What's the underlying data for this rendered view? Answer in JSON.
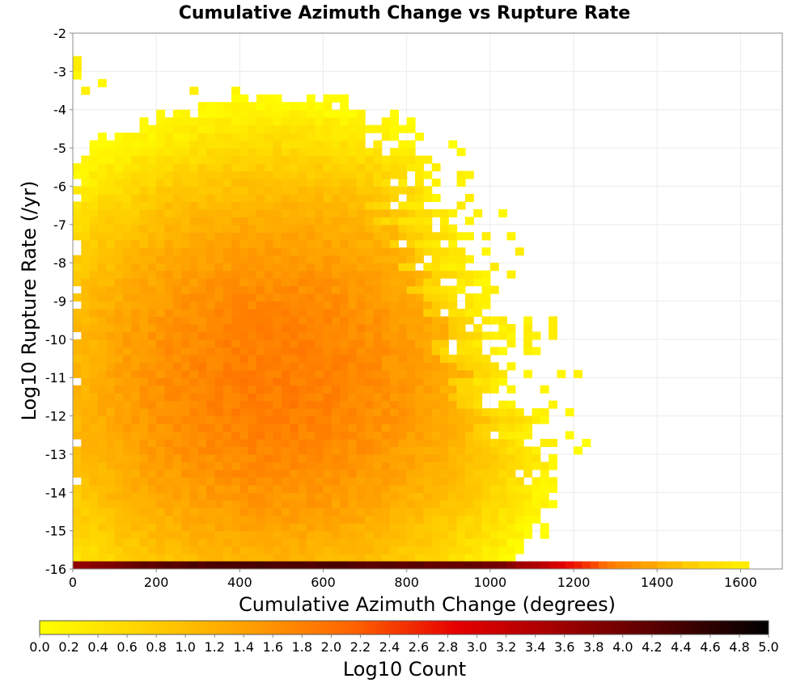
{
  "chart_data": {
    "type": "heatmap",
    "title": "Cumulative Azimuth Change vs Rupture Rate",
    "xlabel": "Cumulative Azimuth Change (degrees)",
    "ylabel": "Log10 Rupture Rate (/yr)",
    "xlim": [
      0,
      1700
    ],
    "ylim": [
      -16,
      -2
    ],
    "x_ticks": [
      "0",
      "200",
      "400",
      "600",
      "800",
      "1000",
      "1200",
      "1400",
      "1600"
    ],
    "y_ticks": [
      "-2",
      "-3",
      "-4",
      "-5",
      "-6",
      "-7",
      "-8",
      "-9",
      "-10",
      "-11",
      "-12",
      "-13",
      "-14",
      "-15",
      "-16"
    ],
    "bin_width_x": 20,
    "bin_height_y": 0.2,
    "grid": true,
    "colorbar": {
      "label": "Log10 Count",
      "range": [
        0.0,
        5.0
      ],
      "ticks": [
        "0.0",
        "0.2",
        "0.4",
        "0.6",
        "0.8",
        "1.0",
        "1.2",
        "1.4",
        "1.6",
        "1.8",
        "2.0",
        "2.2",
        "2.4",
        "2.6",
        "2.8",
        "3.0",
        "3.2",
        "3.4",
        "3.6",
        "3.8",
        "4.0",
        "4.2",
        "4.4",
        "4.6",
        "4.8",
        "5.0"
      ],
      "colors": [
        "#ffff00",
        "#ffd200",
        "#ffa000",
        "#ff6400",
        "#e60000",
        "#a00000",
        "#500000",
        "#000000"
      ]
    },
    "density_model": {
      "upper_cloud": {
        "y_range": [
          -15.8,
          -3.8
        ],
        "peak_log10_count": 1.85,
        "peak_center": [
          470,
          -11.2
        ],
        "max_azimuth_at_top": 760,
        "max_azimuth_at_bottom": 1240
      },
      "bottom_row": {
        "y": -16,
        "x_range": [
          0,
          1620
        ],
        "log10_count_profile": [
          [
            0,
            3.7
          ],
          [
            200,
            4.2
          ],
          [
            400,
            4.4
          ],
          [
            600,
            4.3
          ],
          [
            800,
            4.2
          ],
          [
            1000,
            4.0
          ],
          [
            1100,
            3.4
          ],
          [
            1200,
            2.6
          ],
          [
            1300,
            1.8
          ],
          [
            1400,
            1.2
          ],
          [
            1500,
            0.6
          ],
          [
            1620,
            0.2
          ]
        ]
      }
    }
  }
}
